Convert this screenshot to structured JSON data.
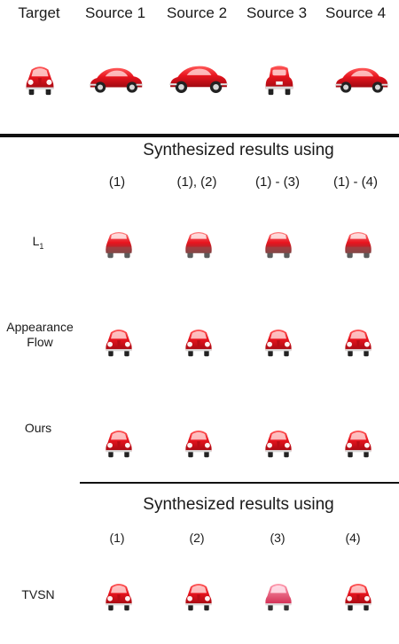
{
  "header": {
    "target": "Target",
    "source1": "Source 1",
    "source2": "Source 2",
    "source3": "Source 3",
    "source4": "Source 4"
  },
  "section1": {
    "title": "Synthesized results using",
    "columns": [
      "(1)",
      "(1), (2)",
      "(1) - (3)",
      "(1) - (4)"
    ],
    "rows": {
      "l1_main": "L",
      "l1_sub": "1",
      "appearance_flow_line1": "Appearance",
      "appearance_flow_line2": "Flow",
      "ours": "Ours"
    }
  },
  "section2": {
    "title": "Synthesized results using",
    "columns": [
      "(1)",
      "(2)",
      "(3)",
      "(4)"
    ],
    "rows": {
      "tvsn": "TVSN"
    }
  },
  "colors": {
    "car_red": "#e8141e",
    "car_dark": "#9a0a10",
    "rule": "#111111"
  },
  "icons": {
    "car": "red-beetle-car-icon"
  }
}
